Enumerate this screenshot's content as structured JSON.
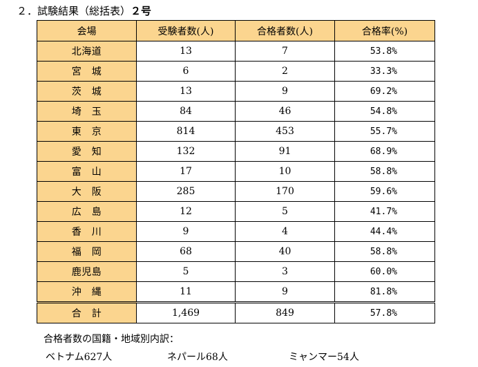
{
  "heading": {
    "prefix": "２．試験結果（総括表）",
    "number": "２号"
  },
  "table": {
    "headers": [
      "会場",
      "受験者数(人)",
      "合格者数(人)",
      "合格率(%)"
    ],
    "rows": [
      [
        "北海道",
        "13",
        "7",
        "53.8%"
      ],
      [
        "宮　城",
        "6",
        "2",
        "33.3%"
      ],
      [
        "茨　城",
        "13",
        "9",
        "69.2%"
      ],
      [
        "埼　玉",
        "84",
        "46",
        "54.8%"
      ],
      [
        "東　京",
        "814",
        "453",
        "55.7%"
      ],
      [
        "愛　知",
        "132",
        "91",
        "68.9%"
      ],
      [
        "富　山",
        "17",
        "10",
        "58.8%"
      ],
      [
        "大　阪",
        "285",
        "170",
        "59.6%"
      ],
      [
        "広　島",
        "12",
        "5",
        "41.7%"
      ],
      [
        "香　川",
        "9",
        "4",
        "44.4%"
      ],
      [
        "福　岡",
        "68",
        "40",
        "58.8%"
      ],
      [
        "鹿児島",
        "5",
        "3",
        "60.0%"
      ],
      [
        "沖　縄",
        "11",
        "9",
        "81.8%"
      ]
    ],
    "total": [
      "合　計",
      "1,469",
      "849",
      "57.8%"
    ]
  },
  "breakdown": {
    "title": "合格者数の国籍・地域別内訳：",
    "items": [
      "ベトナム627人",
      "ネパール68人",
      "ミャンマー54人"
    ]
  },
  "colors": {
    "header_fill": "#fbd58f",
    "border": "#000000"
  }
}
